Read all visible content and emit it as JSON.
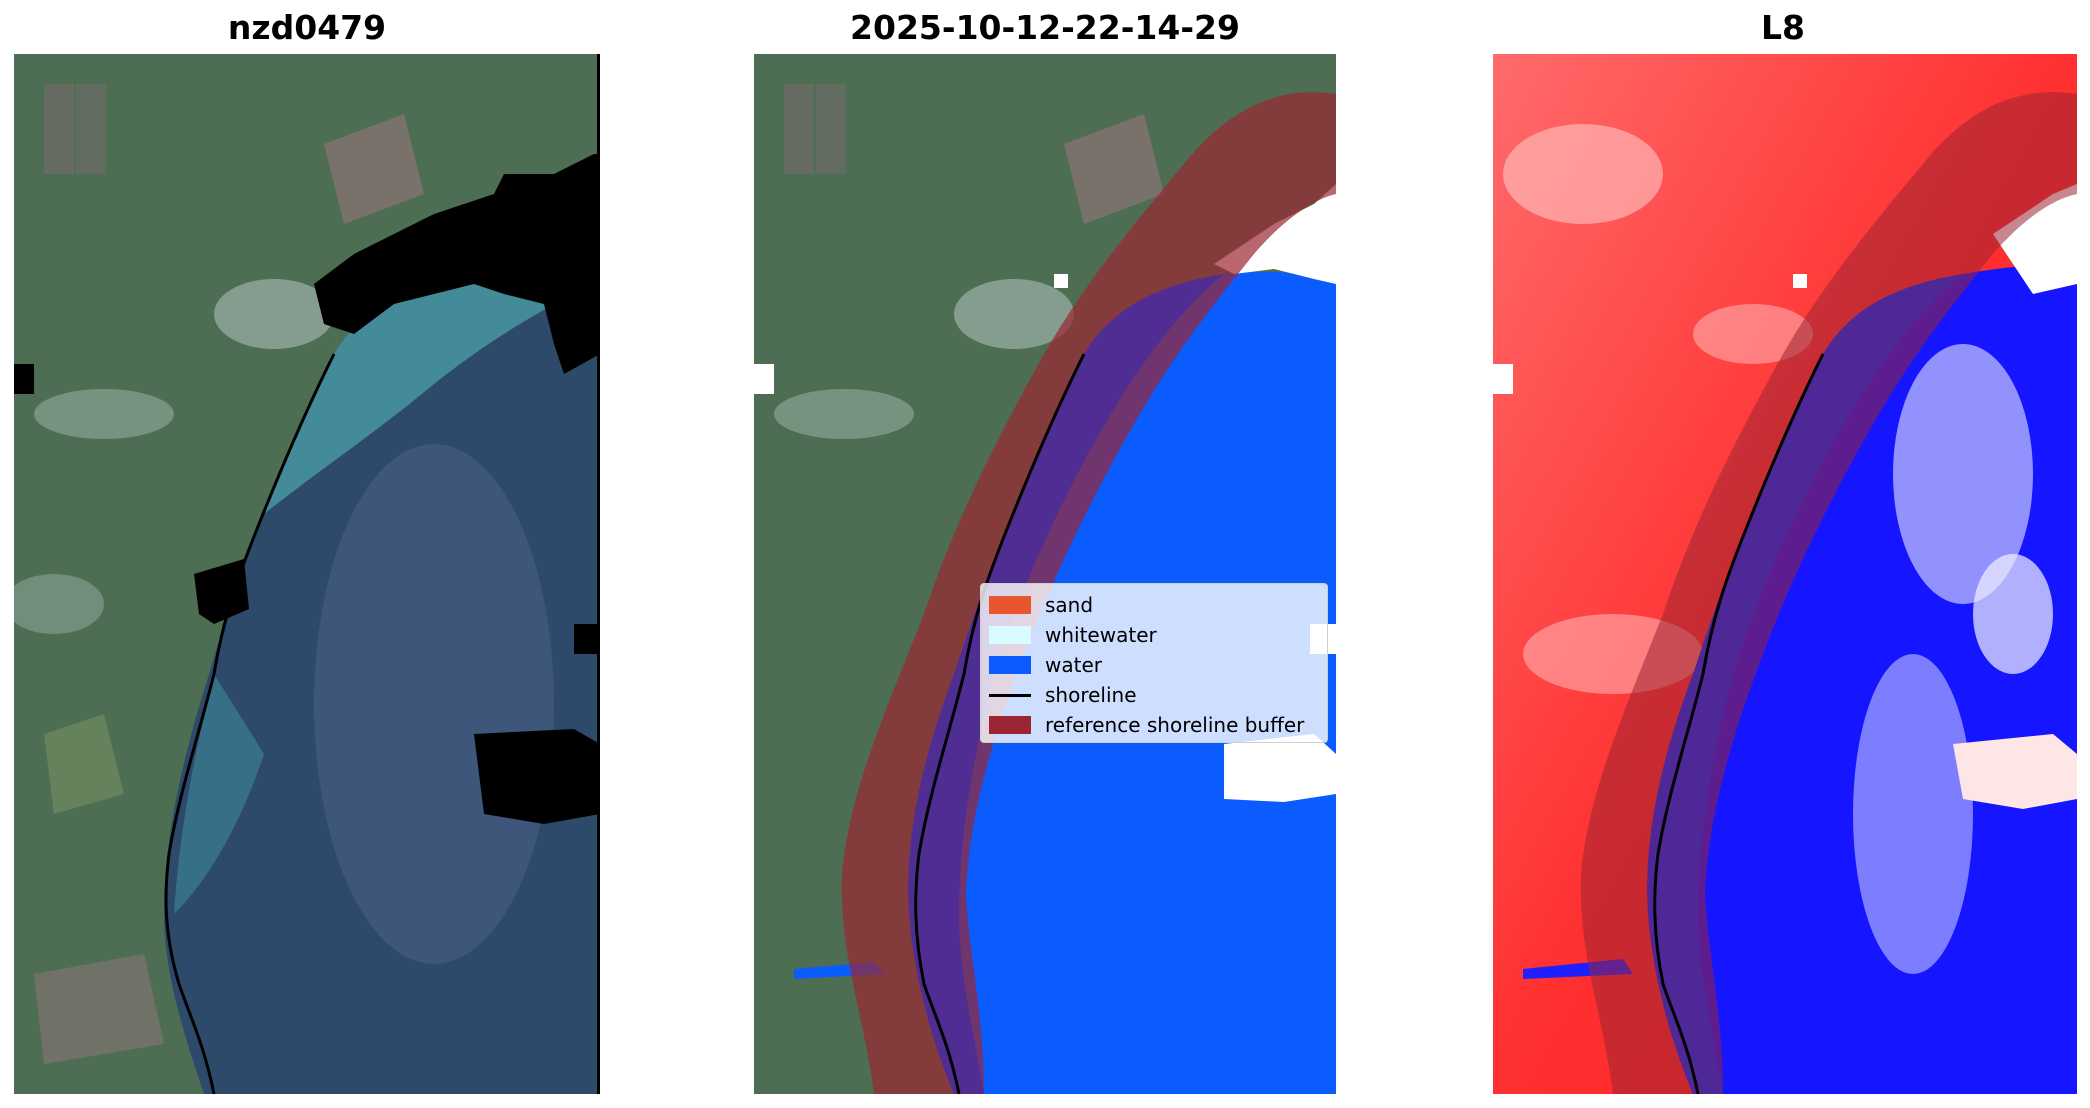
{
  "panels": [
    {
      "title": "nzd0479",
      "kind": "rgb"
    },
    {
      "title": "2025-10-12-22-14-29",
      "kind": "classified"
    },
    {
      "title": "L8",
      "kind": "index"
    }
  ],
  "legend": {
    "items": [
      {
        "label": "sand",
        "color": "#e8552e",
        "type": "patch"
      },
      {
        "label": "whitewater",
        "color": "#d8fbff",
        "type": "patch"
      },
      {
        "label": "water",
        "color": "#0a5cff",
        "type": "patch"
      },
      {
        "label": "shoreline",
        "color": "#000000",
        "type": "line"
      },
      {
        "label": "reference shoreline buffer",
        "color": "#9b2532",
        "type": "patch"
      }
    ]
  },
  "colors": {
    "land": "#4a6b4f",
    "ocean": "#2f4c6c",
    "surf": "#4a9aa3",
    "nodata": "#000000",
    "water_class": "#0a5cff",
    "buffer": "#9b2532",
    "index_land": "#ff2a2a",
    "index_water": "#1515ff"
  }
}
